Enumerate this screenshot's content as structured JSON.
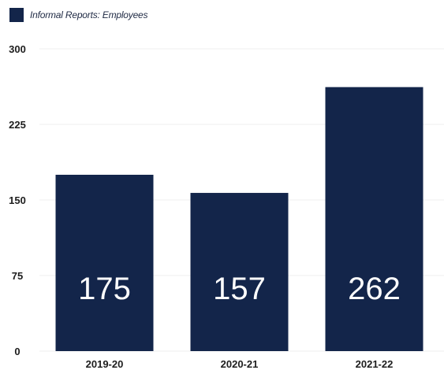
{
  "legend": {
    "label": "Informal Reports: Employees"
  },
  "colors": {
    "bar": "#13254a",
    "grid": "#efefef"
  },
  "chart_data": {
    "type": "bar",
    "categories": [
      "2019-20",
      "2020-21",
      "2021-22"
    ],
    "series": [
      {
        "name": "Informal Reports: Employees",
        "values": [
          175,
          157,
          262
        ]
      }
    ],
    "ylim": [
      0,
      300
    ],
    "yticks": [
      0,
      75,
      150,
      225,
      300
    ],
    "grid": true,
    "legend_position": "top-left",
    "data_labels": [
      "175",
      "157",
      "262"
    ]
  }
}
